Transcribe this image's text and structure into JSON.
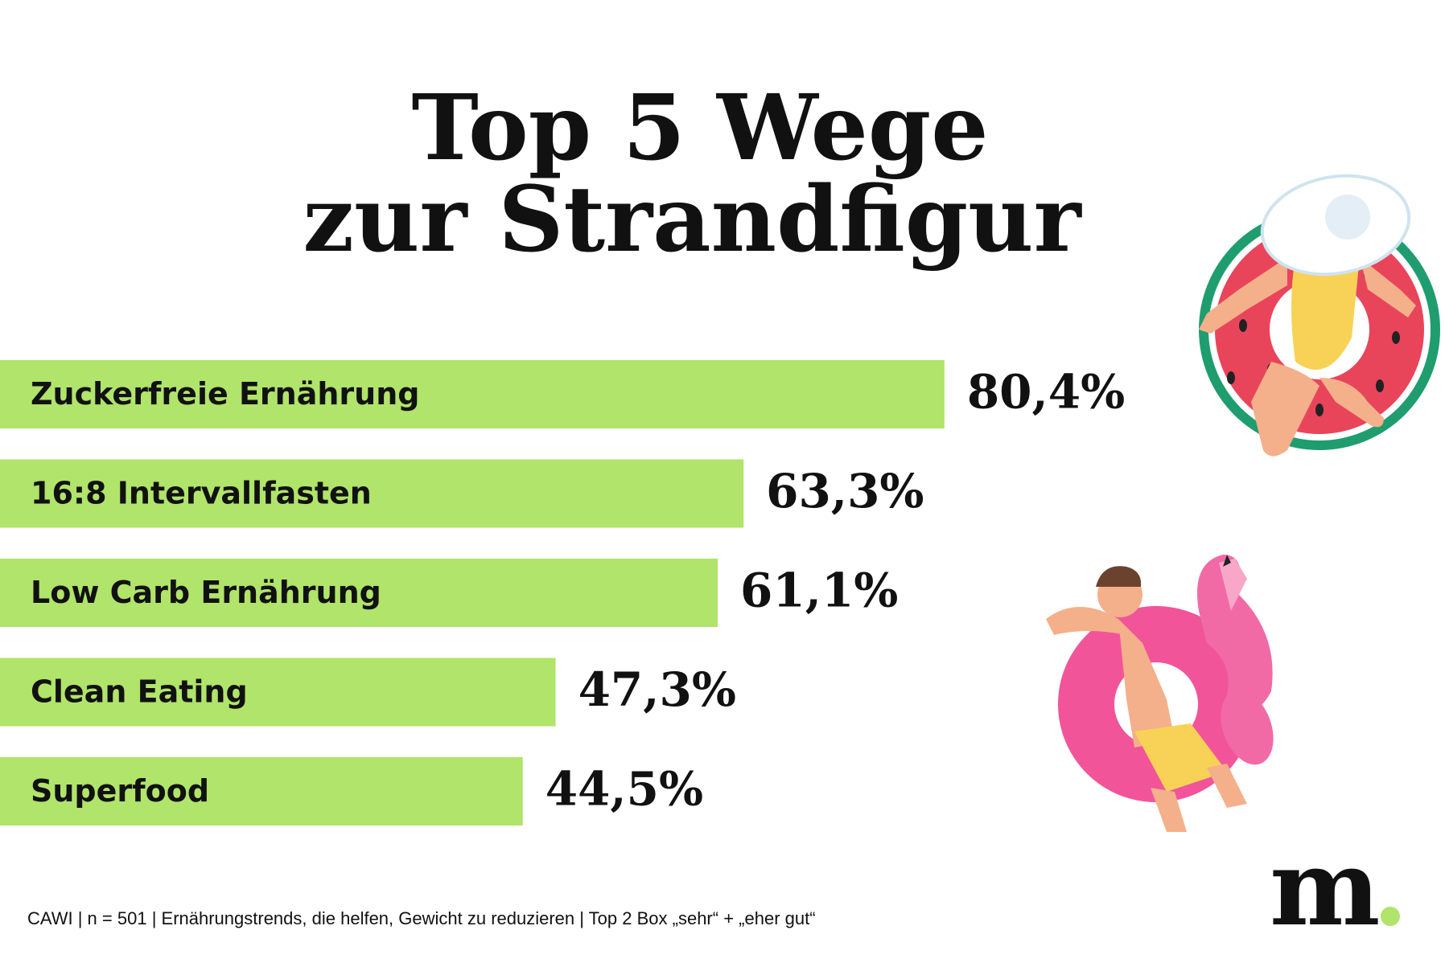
{
  "chart_data": {
    "type": "bar",
    "orientation": "horizontal",
    "title": [
      "Top 5 Wege",
      "zur Strandfigur"
    ],
    "categories": [
      "Zuckerfreie Ernährung",
      "16:8 Intervallfasten",
      "Low Carb Ernährung",
      "Clean Eating",
      "Superfood"
    ],
    "values": [
      80.4,
      63.3,
      61.1,
      47.3,
      44.5
    ],
    "value_labels": [
      "80,4%",
      "63,3%",
      "61,1%",
      "47,3%",
      "44,5%"
    ],
    "color": "#b0e46a",
    "note": "CAWI | n = 501 | Ernährungstrends, die helfen, Gewicht zu reduzieren  | Top 2 Box „sehr“ + „eher gut“",
    "logo": "m"
  }
}
